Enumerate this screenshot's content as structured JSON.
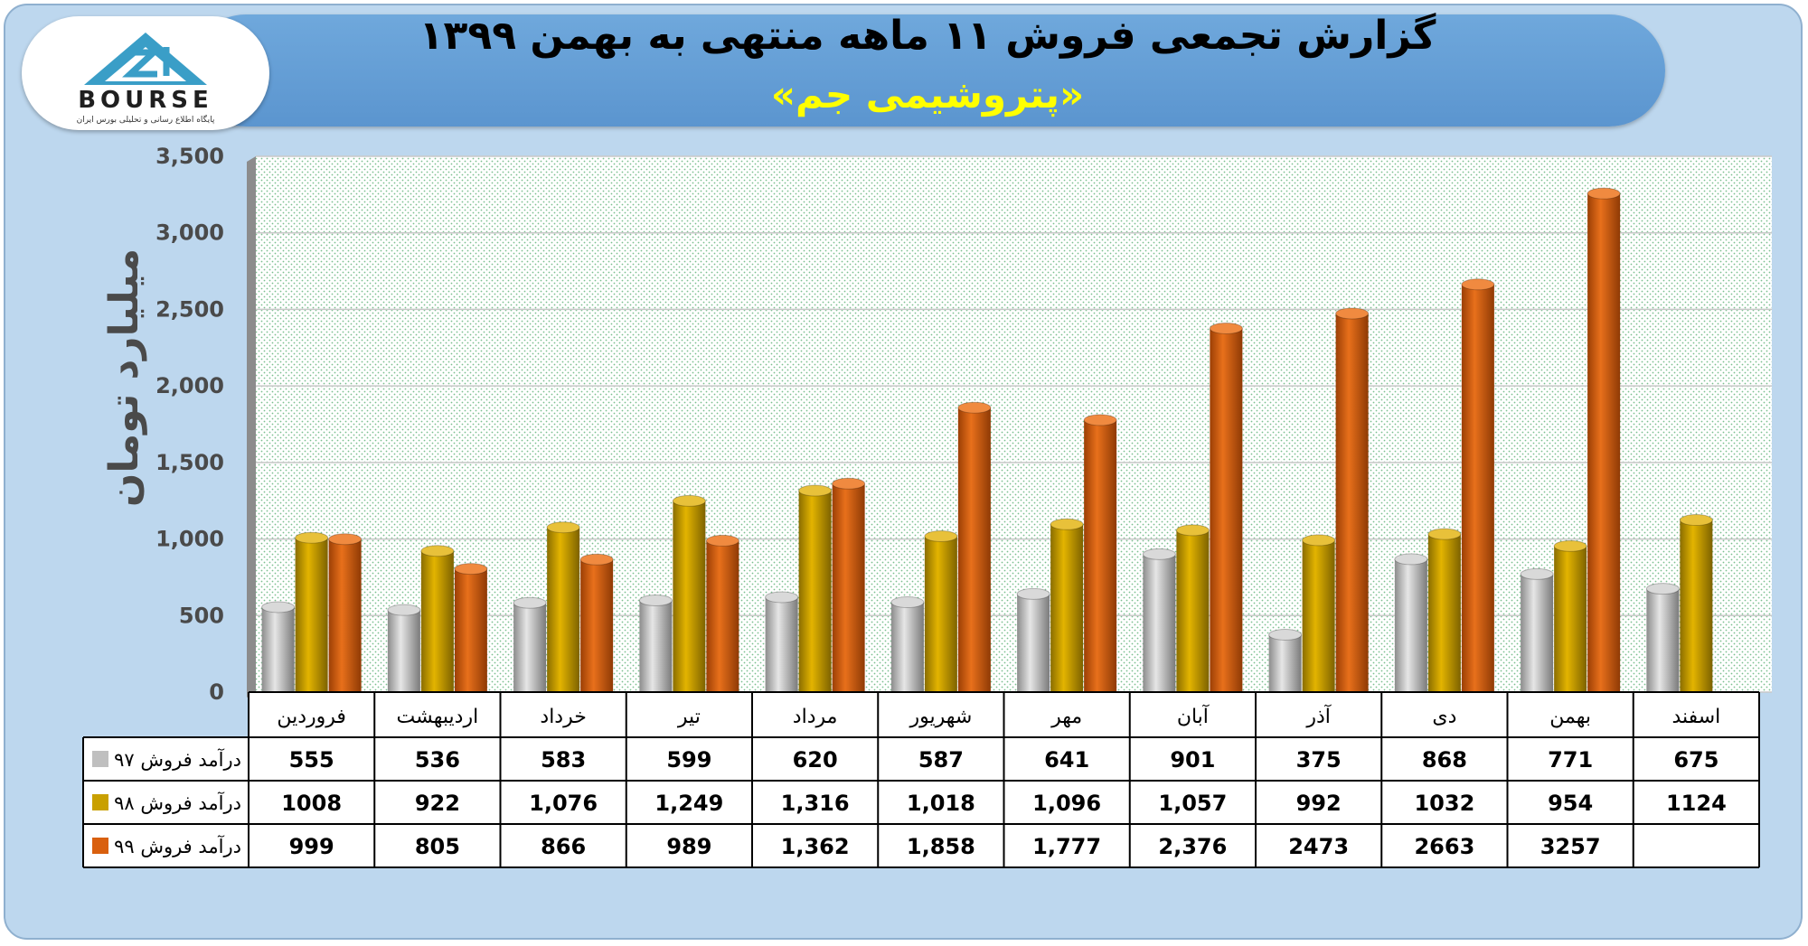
{
  "header": {
    "title": "گزارش تجمعی فروش ۱۱ ماهه منتهی به بهمن ۱۳۹۹",
    "subtitle": "«پتروشیمی جم»"
  },
  "logo": {
    "text": "BOURSE",
    "subtext": "پایگاه اطلاع رسانی و تحلیلی بورس ایران"
  },
  "colors": {
    "series97": "#bfbfbf",
    "series98": "#c9a000",
    "series99": "#d9600f"
  },
  "chart_data": {
    "type": "bar",
    "ylabel": "میلیارد تومان",
    "ylim": [
      0,
      3500
    ],
    "yticks": [
      "0",
      "500",
      "1,000",
      "1,500",
      "2,000",
      "2,500",
      "3,000",
      "3,500"
    ],
    "ytick_values": [
      0,
      500,
      1000,
      1500,
      2000,
      2500,
      3000,
      3500
    ],
    "categories": [
      "فروردین",
      "اردیبهشت",
      "خرداد",
      "تیر",
      "مرداد",
      "شهریور",
      "مهر",
      "آبان",
      "آذر",
      "دی",
      "بهمن",
      "اسفند"
    ],
    "series": [
      {
        "name": "درآمد فروش ۹۷",
        "values": [
          555,
          536,
          583,
          599,
          620,
          587,
          641,
          901,
          375,
          868,
          771,
          675
        ],
        "labels": [
          "555",
          "536",
          "583",
          "599",
          "620",
          "587",
          "641",
          "901",
          "375",
          "868",
          "771",
          "675"
        ]
      },
      {
        "name": "درآمد فروش ۹۸",
        "values": [
          1008,
          922,
          1076,
          1249,
          1316,
          1018,
          1096,
          1057,
          992,
          1032,
          954,
          1124
        ],
        "labels": [
          "1008",
          "922",
          "1,076",
          "1,249",
          "1,316",
          "1,018",
          "1,096",
          "1,057",
          "992",
          "1032",
          "954",
          "1124"
        ]
      },
      {
        "name": "درآمد فروش ۹۹",
        "values": [
          999,
          805,
          866,
          989,
          1362,
          1858,
          1777,
          2376,
          2473,
          2663,
          3257,
          null
        ],
        "labels": [
          "999",
          "805",
          "866",
          "989",
          "1,362",
          "1,858",
          "1,777",
          "2,376",
          "2473",
          "2663",
          "3257",
          ""
        ]
      }
    ]
  }
}
